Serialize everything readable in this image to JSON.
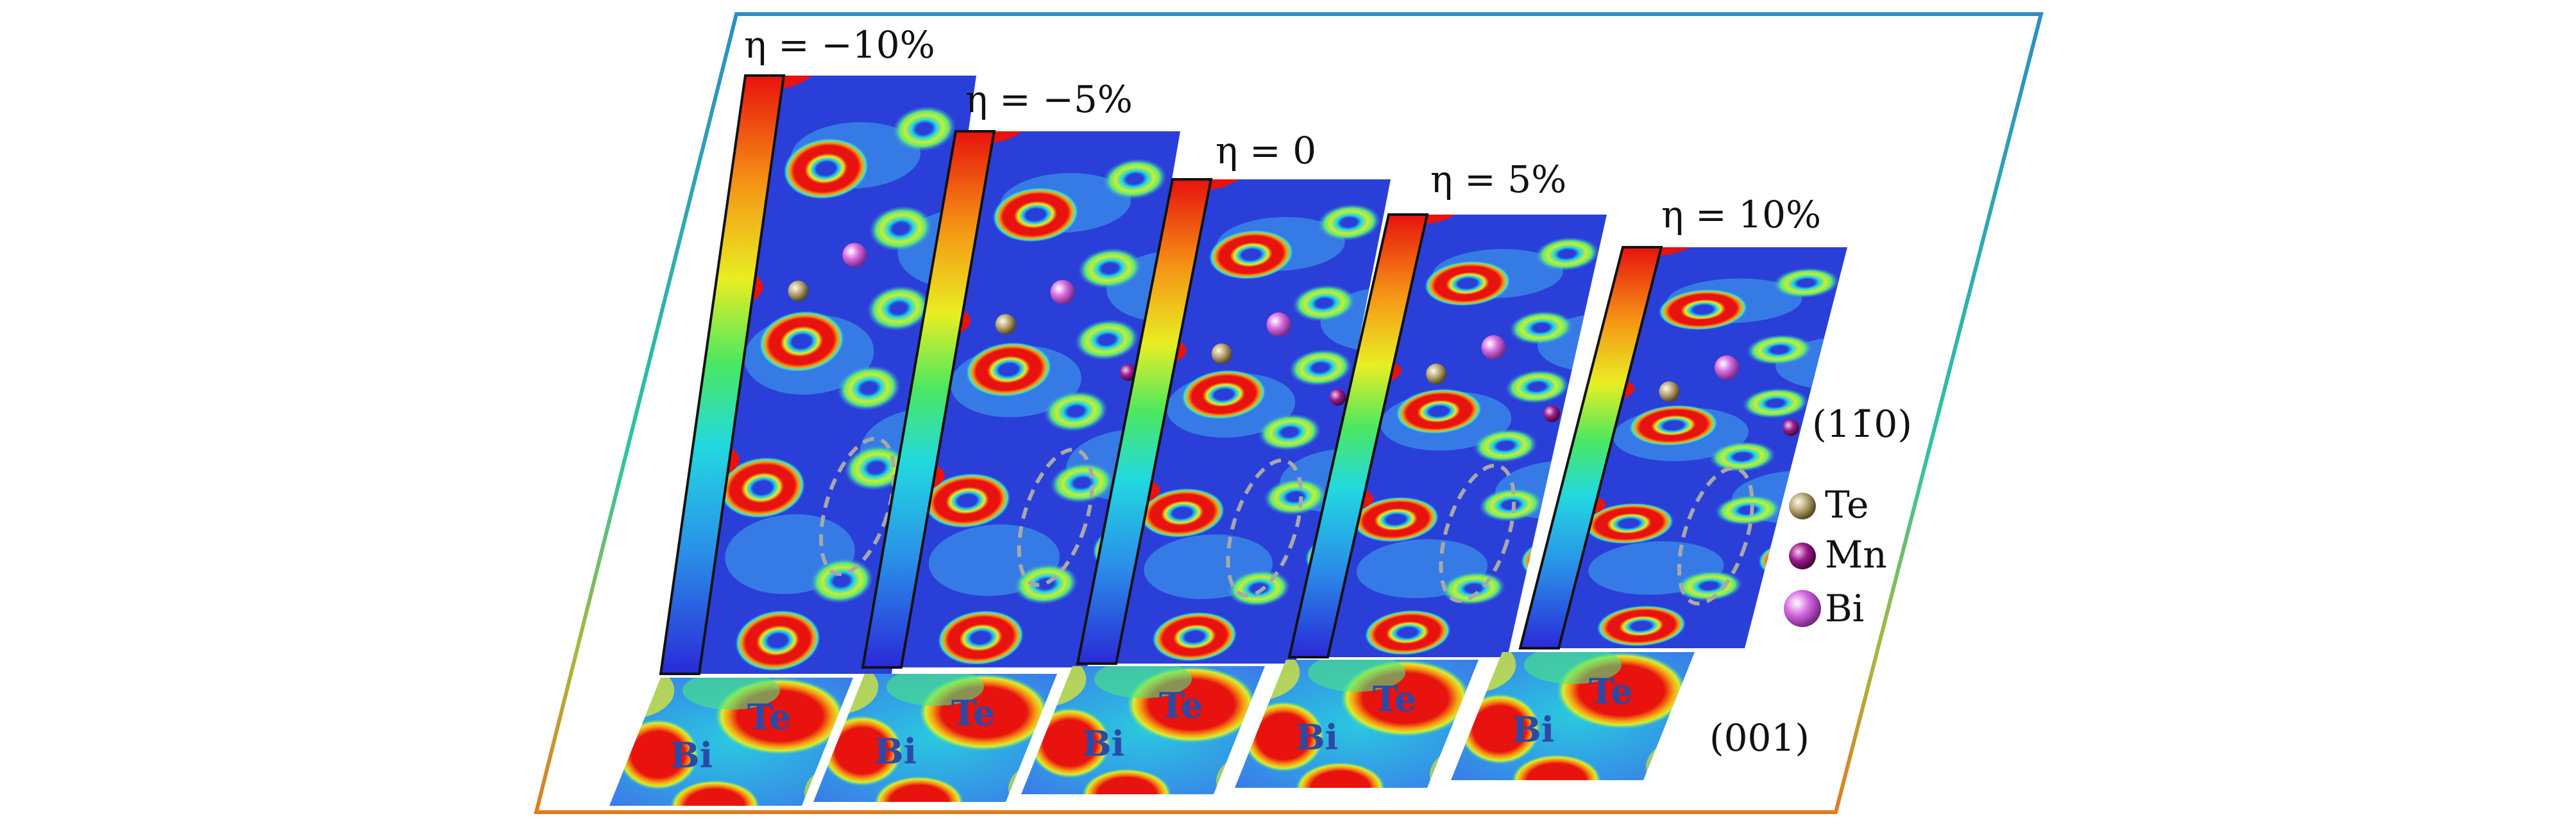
{
  "panels": [
    {
      "eta_label": "η = −10%",
      "plane_label_top": "",
      "mn_index": 3
    },
    {
      "eta_label": "η = −5%"
    },
    {
      "eta_label": "η = 0"
    },
    {
      "eta_label": "η = 5%"
    },
    {
      "eta_label": "η = 10%"
    }
  ],
  "plane_labels": {
    "side": "(11̄0)",
    "bottom": "(001)"
  },
  "bottom_atom_labels": {
    "te": "Te",
    "bi": "Bi"
  },
  "legend": [
    {
      "label": "Te",
      "color": "#b8a878"
    },
    {
      "label": "Mn",
      "color": "#9b1e8c"
    },
    {
      "label": "Bi",
      "color": "#d66ae0"
    }
  ],
  "colors": {
    "frame_top": "#2e8ec4",
    "frame_bottom": "#e07b20",
    "density_low": "#2a3fd8",
    "density_high": "#e8120e"
  }
}
